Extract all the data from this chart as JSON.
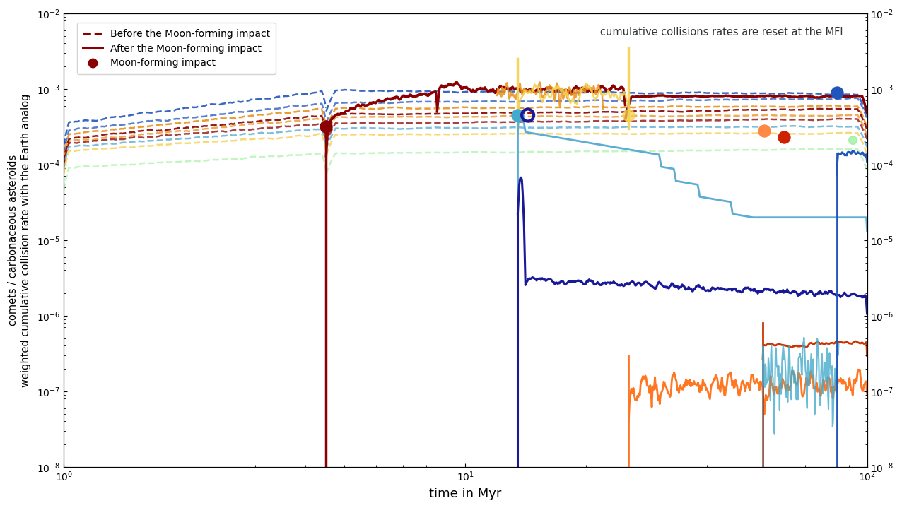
{
  "xlabel": "time in Myr",
  "ylabel": "comets / carbonaceous asteroids\nweighted cumulative collision rate with the Earth analog",
  "annotation": "cumulative collisions rates are reset at the MFI",
  "xlim": [
    1,
    100
  ],
  "ylim": [
    1e-08,
    0.01
  ],
  "colors": {
    "dark_red": "#8B0000",
    "blue": "#2255BB",
    "orange": "#E8901A",
    "light_blue": "#5BADD4",
    "light_yellow": "#F5D050",
    "light_green": "#90EE90",
    "red_orange": "#CC3300",
    "orange2": "#FF7722",
    "navy": "#1A1A99",
    "cyan": "#44AACC"
  }
}
